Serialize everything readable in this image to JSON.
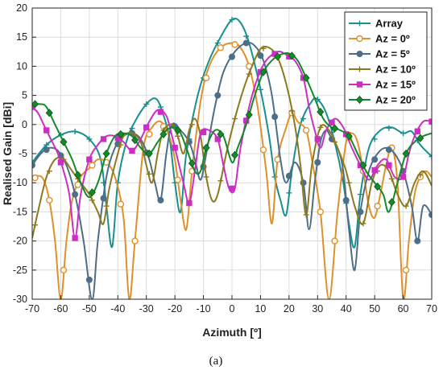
{
  "caption": "(a)",
  "chart_data": {
    "type": "line",
    "xlabel": "Azimuth [º]",
    "ylabel": "Realised Gain [dBi]",
    "xlim": [
      -70,
      70
    ],
    "ylim": [
      -30,
      20
    ],
    "xticks": [
      -70,
      -60,
      -50,
      -40,
      -30,
      -20,
      -10,
      0,
      10,
      20,
      30,
      40,
      50,
      60,
      70
    ],
    "yticks": [
      -30,
      -25,
      -20,
      -15,
      -10,
      -5,
      0,
      5,
      10,
      15,
      20
    ],
    "grid": true,
    "legend_position": "top-right",
    "series": [
      {
        "name": "Array",
        "color": "#1a8f8f",
        "marker": "plus",
        "points": [
          [
            -70,
            -6.5
          ],
          [
            -65,
            -3.5
          ],
          [
            -60,
            -1.8
          ],
          [
            -55,
            -1.2
          ],
          [
            -50,
            -2.5
          ],
          [
            -46,
            -6
          ],
          [
            -44,
            -14
          ],
          [
            -42,
            -21
          ],
          [
            -40,
            -10
          ],
          [
            -37,
            -3
          ],
          [
            -34,
            0.5
          ],
          [
            -30,
            3.5
          ],
          [
            -27,
            4.5
          ],
          [
            -25,
            3
          ],
          [
            -22,
            -2
          ],
          [
            -20,
            -10
          ],
          [
            -18,
            -15
          ],
          [
            -16,
            -5
          ],
          [
            -12,
            5
          ],
          [
            -8,
            11
          ],
          [
            -4,
            15
          ],
          [
            0,
            18
          ],
          [
            3,
            17.5
          ],
          [
            6,
            14
          ],
          [
            10,
            6
          ],
          [
            13,
            -2
          ],
          [
            15,
            -9
          ],
          [
            17,
            -13
          ],
          [
            19,
            -15.5
          ],
          [
            21,
            -8
          ],
          [
            24,
            0
          ],
          [
            28,
            4
          ],
          [
            30,
            4.3
          ],
          [
            33,
            2
          ],
          [
            36,
            -3
          ],
          [
            39,
            -10
          ],
          [
            41,
            -17
          ],
          [
            43,
            -21
          ],
          [
            45,
            -12
          ],
          [
            48,
            -4
          ],
          [
            52,
            -1
          ],
          [
            56,
            -0.5
          ],
          [
            60,
            -1.5
          ],
          [
            63,
            -1.2
          ],
          [
            66,
            -3.5
          ],
          [
            70,
            -5.5
          ]
        ]
      },
      {
        "name": "Az = 0º",
        "color": "#e0902a",
        "marker": "circle",
        "points": [
          [
            -70,
            -9.5
          ],
          [
            -68,
            -8.8
          ],
          [
            -66,
            -9.5
          ],
          [
            -64,
            -13
          ],
          [
            -62,
            -20
          ],
          [
            -60,
            -30
          ],
          [
            -58,
            -20
          ],
          [
            -56,
            -13
          ],
          [
            -53,
            -9
          ],
          [
            -50,
            -7.5
          ],
          [
            -47,
            -6
          ],
          [
            -44,
            -6.5
          ],
          [
            -41,
            -9
          ],
          [
            -38,
            -16
          ],
          [
            -36,
            -30
          ],
          [
            -34,
            -20
          ],
          [
            -31,
            -4
          ],
          [
            -28,
            -0.5
          ],
          [
            -25,
            0.5
          ],
          [
            -22,
            -2
          ],
          [
            -20,
            -6
          ],
          [
            -18,
            -13
          ],
          [
            -16,
            -18
          ],
          [
            -14,
            -8
          ],
          [
            -11,
            4
          ],
          [
            -8,
            10
          ],
          [
            -4,
            13.2
          ],
          [
            0,
            14
          ],
          [
            3,
            13.2
          ],
          [
            6,
            10
          ],
          [
            9,
            3
          ],
          [
            12,
            -8
          ],
          [
            14,
            -17
          ],
          [
            16,
            -6
          ],
          [
            19,
            -0.5
          ],
          [
            21,
            2
          ],
          [
            23,
            0.5
          ],
          [
            26,
            -1
          ],
          [
            28,
            -6
          ],
          [
            31,
            -15
          ],
          [
            34,
            -30
          ],
          [
            37,
            -15
          ],
          [
            40,
            -3
          ],
          [
            42,
            -1.5
          ],
          [
            44,
            -3
          ],
          [
            46,
            -8
          ],
          [
            48,
            -14
          ],
          [
            50,
            -16
          ],
          [
            52,
            -12
          ],
          [
            54,
            -7
          ],
          [
            56,
            -4
          ],
          [
            58,
            -10
          ],
          [
            60,
            -30
          ],
          [
            62,
            -20
          ],
          [
            64,
            -12
          ],
          [
            66,
            -9
          ],
          [
            68,
            -8
          ],
          [
            70,
            -9
          ]
        ]
      },
      {
        "name": "Az = 5º",
        "color": "#4e6d86",
        "marker": "dot",
        "points": [
          [
            -70,
            -7
          ],
          [
            -67,
            -5
          ],
          [
            -64,
            -4
          ],
          [
            -61,
            -4.5
          ],
          [
            -58,
            -7
          ],
          [
            -55,
            -12
          ],
          [
            -52,
            -20
          ],
          [
            -49,
            -30
          ],
          [
            -47,
            -20
          ],
          [
            -44,
            -9
          ],
          [
            -41,
            -4
          ],
          [
            -38,
            -2
          ],
          [
            -35,
            -1.5
          ],
          [
            -32,
            -2.5
          ],
          [
            -29,
            -6
          ],
          [
            -27,
            -10
          ],
          [
            -25,
            -13
          ],
          [
            -23,
            -5
          ],
          [
            -21,
            0
          ],
          [
            -18,
            -1
          ],
          [
            -15,
            -3
          ],
          [
            -13,
            -6
          ],
          [
            -11,
            -9.5
          ],
          [
            -9,
            -5
          ],
          [
            -6,
            3
          ],
          [
            -3,
            9
          ],
          [
            1,
            12.5
          ],
          [
            5,
            14
          ],
          [
            8,
            13.5
          ],
          [
            11,
            11
          ],
          [
            14,
            5
          ],
          [
            17,
            -6
          ],
          [
            19,
            -10
          ],
          [
            22,
            -6.5
          ],
          [
            25,
            -10
          ],
          [
            27,
            -18
          ],
          [
            29,
            -10
          ],
          [
            31,
            -3
          ],
          [
            33,
            -1
          ],
          [
            35,
            -2.5
          ],
          [
            37,
            -4
          ],
          [
            39,
            -8
          ],
          [
            41,
            -18
          ],
          [
            43,
            -25
          ],
          [
            45,
            -15
          ],
          [
            48,
            -8
          ],
          [
            51,
            -5
          ],
          [
            54,
            -4
          ],
          [
            57,
            -5
          ],
          [
            60,
            -8
          ],
          [
            63,
            -14
          ],
          [
            65,
            -20
          ],
          [
            67,
            -14
          ],
          [
            70,
            -15.5
          ]
        ]
      },
      {
        "name": "Az = 10º",
        "color": "#8b7a20",
        "marker": "plus",
        "points": [
          [
            -70,
            -19.5
          ],
          [
            -68,
            -15
          ],
          [
            -65,
            -9
          ],
          [
            -62,
            -6
          ],
          [
            -59,
            -6
          ],
          [
            -56,
            -8
          ],
          [
            -53,
            -10
          ],
          [
            -50,
            -12
          ],
          [
            -47,
            -15
          ],
          [
            -45,
            -17
          ],
          [
            -43,
            -11
          ],
          [
            -40,
            -5
          ],
          [
            -38,
            -2
          ],
          [
            -35,
            -1.5
          ],
          [
            -32,
            -3
          ],
          [
            -30,
            -7
          ],
          [
            -28,
            -10
          ],
          [
            -26,
            -5
          ],
          [
            -24,
            -1
          ],
          [
            -21,
            0
          ],
          [
            -19,
            -2
          ],
          [
            -17,
            -5
          ],
          [
            -15,
            -1
          ],
          [
            -13,
            1
          ],
          [
            -11,
            -2
          ],
          [
            -9,
            -9
          ],
          [
            -7,
            -13
          ],
          [
            -5,
            -12
          ],
          [
            -2,
            -5
          ],
          [
            1,
            1
          ],
          [
            4,
            6
          ],
          [
            7,
            10
          ],
          [
            10,
            13
          ],
          [
            13,
            13.2
          ],
          [
            16,
            11.5
          ],
          [
            19,
            7
          ],
          [
            22,
            0
          ],
          [
            24,
            -7
          ],
          [
            26,
            -15.5
          ],
          [
            28,
            -7
          ],
          [
            31,
            -0.5
          ],
          [
            34,
            -1
          ],
          [
            37,
            -4
          ],
          [
            40,
            -8
          ],
          [
            43,
            -14
          ],
          [
            46,
            -17
          ],
          [
            49,
            -10
          ],
          [
            52,
            -7
          ],
          [
            55,
            -8
          ],
          [
            58,
            -12
          ],
          [
            61,
            -14
          ],
          [
            64,
            -10
          ],
          [
            67,
            -8
          ],
          [
            70,
            -10.5
          ]
        ]
      },
      {
        "name": "Az = 15º",
        "color": "#cc2ec4",
        "marker": "square",
        "points": [
          [
            -70,
            3
          ],
          [
            -68,
            2
          ],
          [
            -66,
            0
          ],
          [
            -64,
            -2
          ],
          [
            -61,
            -5
          ],
          [
            -59,
            -8
          ],
          [
            -57,
            -12
          ],
          [
            -55,
            -19.5
          ],
          [
            -53,
            -12
          ],
          [
            -50,
            -6
          ],
          [
            -47,
            -3.5
          ],
          [
            -44,
            -2
          ],
          [
            -41,
            -2
          ],
          [
            -38,
            -3
          ],
          [
            -35,
            -4.5
          ],
          [
            -32,
            -2.5
          ],
          [
            -29,
            0.5
          ],
          [
            -26,
            2.5
          ],
          [
            -23,
            1.5
          ],
          [
            -21,
            -2
          ],
          [
            -19,
            -6
          ],
          [
            -17,
            -10
          ],
          [
            -15,
            -13.5
          ],
          [
            -13,
            -8
          ],
          [
            -11,
            -1.5
          ],
          [
            -8,
            -1
          ],
          [
            -5,
            -2.5
          ],
          [
            -3,
            -7
          ],
          [
            -1,
            -11
          ],
          [
            1,
            -11
          ],
          [
            3,
            -4
          ],
          [
            6,
            3
          ],
          [
            9,
            8
          ],
          [
            12,
            11
          ],
          [
            16,
            12.5
          ],
          [
            19,
            12
          ],
          [
            22,
            11
          ],
          [
            25,
            8
          ],
          [
            27,
            3
          ],
          [
            29,
            -1
          ],
          [
            31,
            -4
          ],
          [
            33,
            -1
          ],
          [
            36,
            1
          ],
          [
            39,
            -0.5
          ],
          [
            42,
            -4
          ],
          [
            45,
            -7
          ],
          [
            48,
            -9.5
          ],
          [
            51,
            -7
          ],
          [
            54,
            -6
          ],
          [
            57,
            -9
          ],
          [
            60,
            -9
          ],
          [
            62,
            -5
          ],
          [
            64,
            -2
          ],
          [
            67,
            0.5
          ],
          [
            70,
            0.5
          ]
        ]
      },
      {
        "name": "Az = 20º",
        "color": "#138a2a",
        "marker": "diamond",
        "points": [
          [
            -70,
            3.5
          ],
          [
            -67,
            3.5
          ],
          [
            -65,
            3
          ],
          [
            -62,
            0
          ],
          [
            -59,
            -3
          ],
          [
            -56,
            -6
          ],
          [
            -53,
            -10
          ],
          [
            -50,
            -12.5
          ],
          [
            -47,
            -10
          ],
          [
            -44,
            -5
          ],
          [
            -41,
            -2
          ],
          [
            -38,
            -1.5
          ],
          [
            -35,
            -2
          ],
          [
            -32,
            -4
          ],
          [
            -29,
            -5
          ],
          [
            -26,
            -3
          ],
          [
            -23,
            -1
          ],
          [
            -20,
            -0.5
          ],
          [
            -18,
            -1.5
          ],
          [
            -16,
            -4
          ],
          [
            -13,
            -8
          ],
          [
            -11,
            -8
          ],
          [
            -9,
            -4
          ],
          [
            -6,
            -1
          ],
          [
            -3,
            -2
          ],
          [
            0,
            -6.5
          ],
          [
            2,
            -4
          ],
          [
            5,
            0
          ],
          [
            8,
            5
          ],
          [
            11,
            9
          ],
          [
            14,
            11
          ],
          [
            17,
            12
          ],
          [
            20,
            12.2
          ],
          [
            23,
            11
          ],
          [
            26,
            8
          ],
          [
            29,
            4.5
          ],
          [
            32,
            1
          ],
          [
            35,
            -0.5
          ],
          [
            38,
            -1
          ],
          [
            41,
            -2
          ],
          [
            44,
            -5
          ],
          [
            47,
            -8
          ],
          [
            50,
            -10
          ],
          [
            53,
            -12
          ],
          [
            55,
            -15
          ],
          [
            58,
            -10
          ],
          [
            61,
            -5
          ],
          [
            64,
            -3
          ],
          [
            67,
            -2
          ],
          [
            70,
            -1.5
          ]
        ]
      }
    ]
  }
}
